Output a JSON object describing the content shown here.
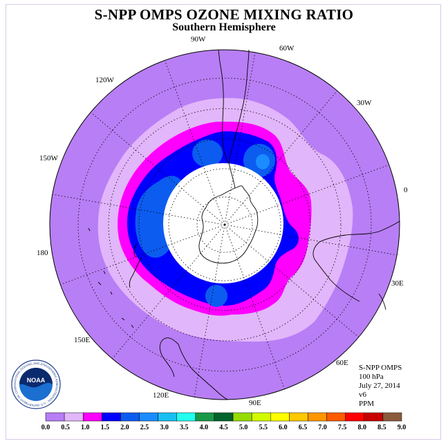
{
  "title": "S-NPP OMPS OZONE MIXING RATIO",
  "subtitle": "Southern Hemisphere",
  "longitude_labels": [
    {
      "name": "lon-90w",
      "text": "90W"
    },
    {
      "name": "lon-60w",
      "text": "60W"
    },
    {
      "name": "lon-30w",
      "text": "30W"
    },
    {
      "name": "lon-0",
      "text": "0"
    },
    {
      "name": "lon-30e",
      "text": "30E"
    },
    {
      "name": "lon-60e",
      "text": "60E"
    },
    {
      "name": "lon-90e",
      "text": "90E"
    },
    {
      "name": "lon-120e",
      "text": "120E"
    },
    {
      "name": "lon-150e",
      "text": "150E"
    },
    {
      "name": "lon-180",
      "text": "180"
    },
    {
      "name": "lon-150w",
      "text": "150W"
    },
    {
      "name": "lon-120w",
      "text": "120W"
    }
  ],
  "info": {
    "instrument": "S-NPP OMPS",
    "level": "100 hPa",
    "date": "July 27, 2014",
    "version": "v6",
    "units": "PPM"
  },
  "logo": {
    "text": "NOAA",
    "ring_text": "NATIONAL OCEANIC AND ATMOSPHERIC ADMINISTRATION · U.S. DEPARTMENT OF COMMERCE"
  },
  "colorbar": {
    "ticks": [
      "0.0",
      "0.5",
      "1.0",
      "1.5",
      "2.0",
      "2.5",
      "3.0",
      "3.5",
      "4.0",
      "4.5",
      "5.0",
      "5.5",
      "6.0",
      "6.5",
      "7.0",
      "7.5",
      "8.0",
      "8.5",
      "9.0"
    ],
    "colors": [
      "#b87ef5",
      "#e2b6fa",
      "#ff00ff",
      "#0000ff",
      "#0c5cf0",
      "#1a8cff",
      "#19bff2",
      "#22ffee",
      "#199946",
      "#00642b",
      "#96dc00",
      "#d2fa00",
      "#ffff00",
      "#ffc800",
      "#ff9600",
      "#ff5a00",
      "#ff0000",
      "#c80000",
      "#8b5a3c"
    ]
  },
  "colors": {
    "range_0_0_5": "#b87ef5",
    "range_0_5_1_0": "#e2b6fa",
    "range_1_0_1_5": "#ff00ff",
    "range_1_5_2_0": "#0000ff",
    "range_2_0_2_5": "#0c5cf0",
    "range_2_5_3_0": "#1a8cff",
    "no_data": "#ffffff"
  }
}
